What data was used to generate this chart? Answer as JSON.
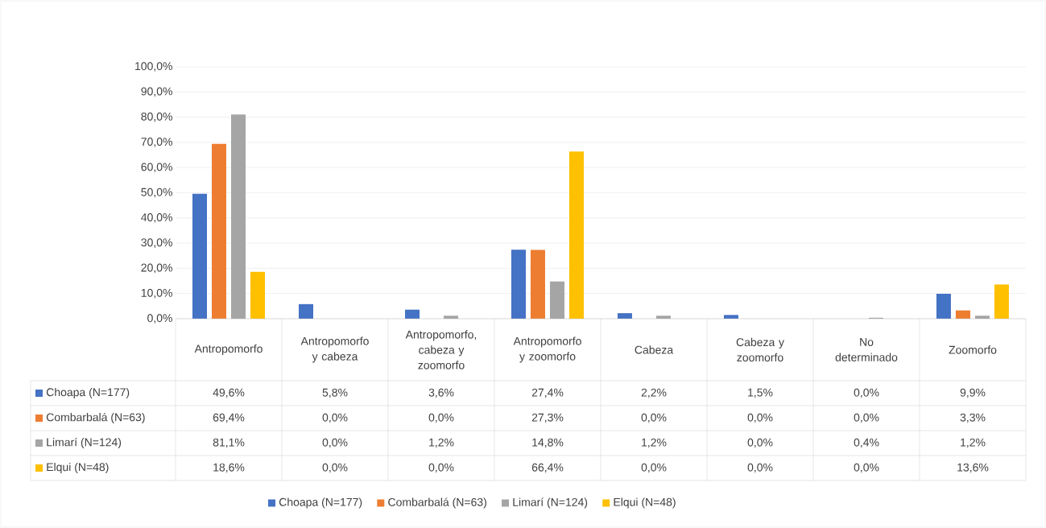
{
  "chart_data": {
    "type": "bar",
    "categories": [
      "Antropomorfo",
      "Antropomorfo y cabeza",
      "Antropomorfo, cabeza y zoomorfo",
      "Antropomorfo y zoomorfo",
      "Cabeza",
      "Cabeza y zoomorfo",
      "No determinado",
      "Zoomorfo"
    ],
    "series": [
      {
        "name": "Choapa (N=177)",
        "color": "#4472c4",
        "values": [
          49.6,
          5.8,
          3.6,
          27.4,
          2.2,
          1.5,
          0.0,
          9.9
        ],
        "value_labels": [
          "49,6%",
          "5,8%",
          "3,6%",
          "27,4%",
          "2,2%",
          "1,5%",
          "0,0%",
          "9,9%"
        ]
      },
      {
        "name": "Combarbalá (N=63)",
        "color": "#ed7d31",
        "values": [
          69.4,
          0.0,
          0.0,
          27.3,
          0.0,
          0.0,
          0.0,
          3.3
        ],
        "value_labels": [
          "69,4%",
          "0,0%",
          "0,0%",
          "27,3%",
          "0,0%",
          "0,0%",
          "0,0%",
          "3,3%"
        ]
      },
      {
        "name": "Limarí (N=124)",
        "color": "#a5a5a5",
        "values": [
          81.1,
          0.0,
          1.2,
          14.8,
          1.2,
          0.0,
          0.4,
          1.2
        ],
        "value_labels": [
          "81,1%",
          "0,0%",
          "1,2%",
          "14,8%",
          "1,2%",
          "0,0%",
          "0,4%",
          "1,2%"
        ]
      },
      {
        "name": "Elqui (N=48)",
        "color": "#ffc000",
        "values": [
          18.6,
          0.0,
          0.0,
          66.4,
          0.0,
          0.0,
          0.0,
          13.6
        ],
        "value_labels": [
          "18,6%",
          "0,0%",
          "0,0%",
          "66,4%",
          "0,0%",
          "0,0%",
          "0,0%",
          "13,6%"
        ]
      }
    ],
    "ylim": [
      0,
      100
    ],
    "yticks": [
      {
        "value": 0,
        "label": "0,0%"
      },
      {
        "value": 10,
        "label": "10,0%"
      },
      {
        "value": 20,
        "label": "20,0%"
      },
      {
        "value": 30,
        "label": "30,0%"
      },
      {
        "value": 40,
        "label": "40,0%"
      },
      {
        "value": 50,
        "label": "50,0%"
      },
      {
        "value": 60,
        "label": "60,0%"
      },
      {
        "value": 70,
        "label": "70,0%"
      },
      {
        "value": 80,
        "label": "80,0%"
      },
      {
        "value": 90,
        "label": "90,0%"
      },
      {
        "value": 100,
        "label": "100,0%"
      }
    ],
    "grid": "y",
    "legend": "bottom"
  }
}
